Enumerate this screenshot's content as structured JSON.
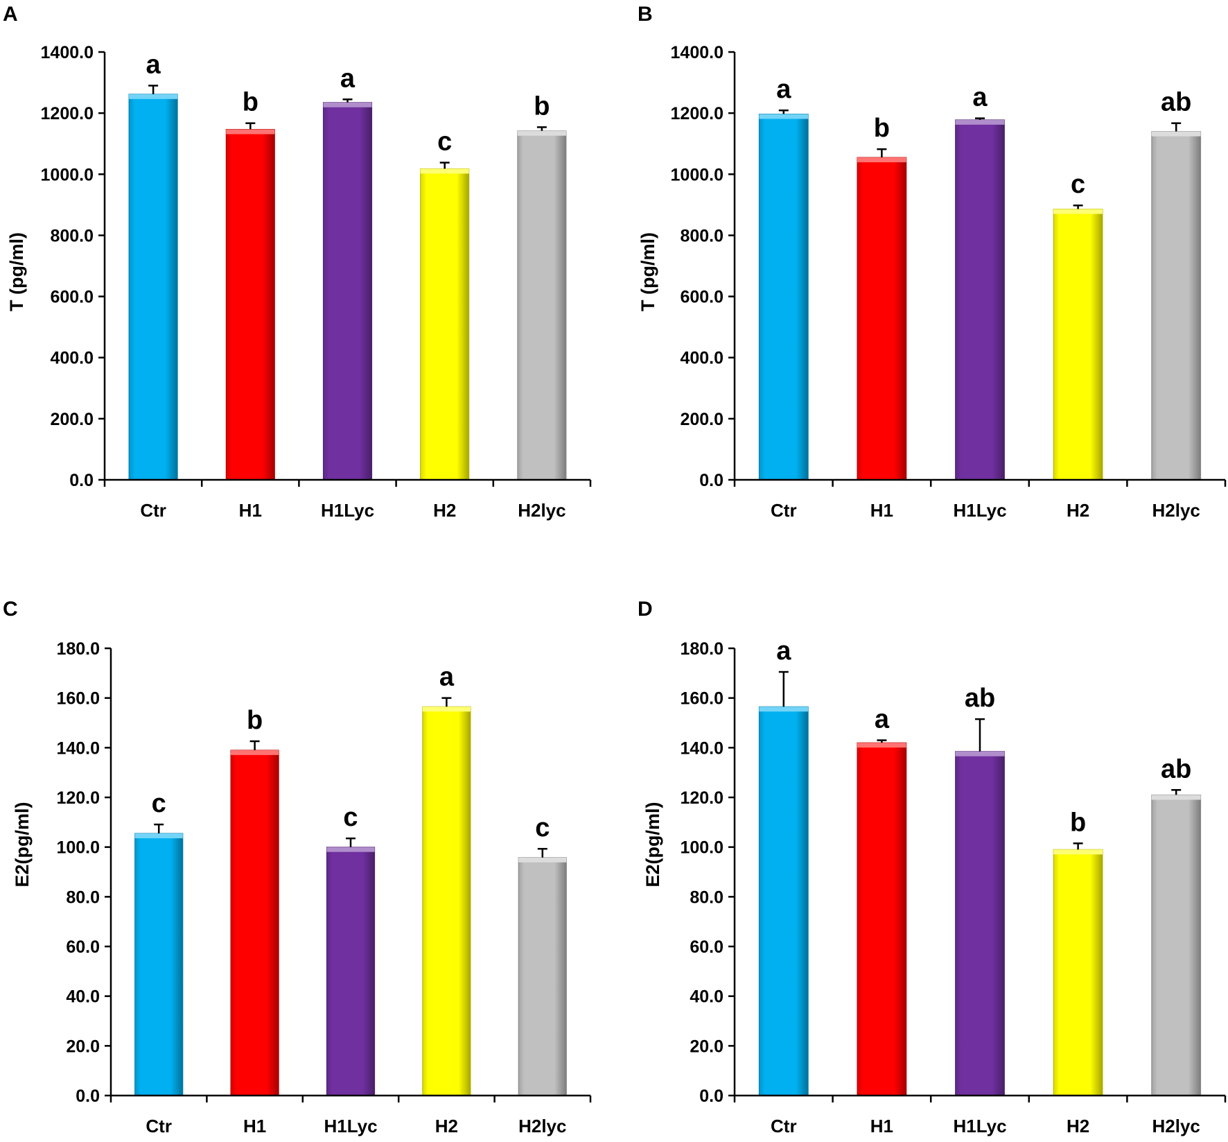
{
  "chart_data": [
    {
      "panel": "A",
      "type": "bar",
      "ylabel": "T (pg/ml)",
      "ylim": [
        0,
        1400
      ],
      "ytick_step": 200,
      "yticks": [
        "0.0",
        "200.0",
        "400.0",
        "600.0",
        "800.0",
        "1000.0",
        "1200.0",
        "1400.0"
      ],
      "categories": [
        "Ctr",
        "H1",
        "H1Lyc",
        "H2",
        "H2lyc"
      ],
      "values": [
        1262,
        1147,
        1235,
        1018,
        1142
      ],
      "errors": [
        28,
        20,
        10,
        20,
        12
      ],
      "significance": [
        "a",
        "b",
        "a",
        "c",
        "b"
      ],
      "colors": [
        "#00b0f0",
        "#ff0000",
        "#7030a0",
        "#ffff00",
        "#c0c0c0"
      ]
    },
    {
      "panel": "B",
      "type": "bar",
      "ylabel": "T (pg/ml)",
      "ylim": [
        0,
        1400
      ],
      "ytick_step": 200,
      "yticks": [
        "0.0",
        "200.0",
        "400.0",
        "600.0",
        "800.0",
        "1000.0",
        "1200.0",
        "1400.0"
      ],
      "categories": [
        "Ctr",
        "H1",
        "H1Lyc",
        "H2",
        "H2lyc"
      ],
      "values": [
        1197,
        1055,
        1178,
        886,
        1140
      ],
      "errors": [
        12,
        27,
        5,
        12,
        27
      ],
      "significance": [
        "a",
        "b",
        "a",
        "c",
        "ab"
      ],
      "colors": [
        "#00b0f0",
        "#ff0000",
        "#7030a0",
        "#ffff00",
        "#c0c0c0"
      ]
    },
    {
      "panel": "C",
      "type": "bar",
      "ylabel": "E2(pg/ml)",
      "ylim": [
        0,
        180
      ],
      "ytick_step": 20,
      "yticks": [
        "0.0",
        "20.0",
        "40.0",
        "60.0",
        "80.0",
        "100.0",
        "120.0",
        "140.0",
        "160.0",
        "180.0"
      ],
      "categories": [
        "Ctr",
        "H1",
        "H1Lyc",
        "H2",
        "H2lyc"
      ],
      "values": [
        105.5,
        139,
        100,
        156.5,
        95.8
      ],
      "errors": [
        3.6,
        3.6,
        3.5,
        3.5,
        3.5
      ],
      "significance": [
        "c",
        "b",
        "c",
        "a",
        "c"
      ],
      "colors": [
        "#00b0f0",
        "#ff0000",
        "#7030a0",
        "#ffff00",
        "#c0c0c0"
      ]
    },
    {
      "panel": "D",
      "type": "bar",
      "ylabel": "E2(pg/ml)",
      "ylim": [
        0,
        180
      ],
      "ytick_step": 20,
      "yticks": [
        "0.0",
        "20.0",
        "40.0",
        "60.0",
        "80.0",
        "100.0",
        "120.0",
        "140.0",
        "160.0",
        "180.0"
      ],
      "categories": [
        "Ctr",
        "H1",
        "H1Lyc",
        "H2",
        "H2lyc"
      ],
      "values": [
        156.5,
        142,
        138.5,
        99,
        121
      ],
      "errors": [
        14,
        1,
        13,
        2.5,
        2
      ],
      "significance": [
        "a",
        "a",
        "ab",
        "b",
        "ab"
      ],
      "colors": [
        "#00b0f0",
        "#ff0000",
        "#7030a0",
        "#ffff00",
        "#c0c0c0"
      ]
    }
  ]
}
